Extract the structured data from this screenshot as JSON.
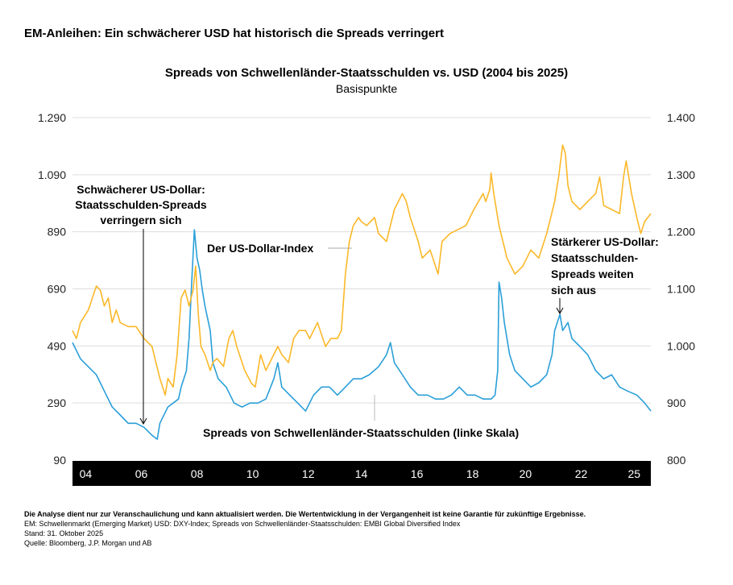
{
  "headline": "EM-Anleihen: Ein schwächerer USD hat historisch die Spreads verringert",
  "chart_data": {
    "type": "line",
    "title": "Spreads von Schwellenländer-Staatsschulden vs. USD (2004 bis 2025)",
    "subtitle": "Basispunkte",
    "xlim": [
      2004,
      2025.83
    ],
    "x_ticks": [
      {
        "label": "04",
        "x": 2004.5
      },
      {
        "label": "06",
        "x": 2006.6
      },
      {
        "label": "08",
        "x": 2008.7
      },
      {
        "label": "10",
        "x": 2010.8
      },
      {
        "label": "12",
        "x": 2012.9
      },
      {
        "label": "14",
        "x": 2014.9
      },
      {
        "label": "16",
        "x": 2017.0
      },
      {
        "label": "18",
        "x": 2019.1
      },
      {
        "label": "20",
        "x": 2021.1
      },
      {
        "label": "22",
        "x": 2023.2
      },
      {
        "label": "25",
        "x": 2025.2
      }
    ],
    "y_left": {
      "lim": [
        90,
        1290
      ],
      "ticks": [
        "1.290",
        "1.090",
        "890",
        "690",
        "490",
        "290",
        "90"
      ],
      "tick_values": [
        1290,
        1090,
        890,
        690,
        490,
        290,
        90
      ]
    },
    "y_right": {
      "lim": [
        800,
        1400
      ],
      "ticks": [
        "1.400",
        "1.300",
        "1.200",
        "1.100",
        "1.000",
        "900",
        "800"
      ],
      "tick_values": [
        1400,
        1300,
        1200,
        1100,
        1000,
        900,
        800
      ]
    },
    "grid": true,
    "series": [
      {
        "name": "Spreads von Schwellenländer-Staatsschulden (linke Skala)",
        "axis": "left",
        "color": "#2a9fd8",
        "points": [
          [
            2004.0,
            502
          ],
          [
            2004.3,
            445
          ],
          [
            2004.6,
            417
          ],
          [
            2004.9,
            389
          ],
          [
            2005.2,
            332
          ],
          [
            2005.5,
            276
          ],
          [
            2005.8,
            248
          ],
          [
            2006.1,
            219
          ],
          [
            2006.4,
            219
          ],
          [
            2006.7,
            205
          ],
          [
            2007.0,
            177
          ],
          [
            2007.2,
            163
          ],
          [
            2007.3,
            219
          ],
          [
            2007.6,
            276
          ],
          [
            2008.0,
            304
          ],
          [
            2008.1,
            346
          ],
          [
            2008.3,
            403
          ],
          [
            2008.4,
            516
          ],
          [
            2008.5,
            714
          ],
          [
            2008.6,
            897
          ],
          [
            2008.7,
            798
          ],
          [
            2008.8,
            756
          ],
          [
            2008.9,
            685
          ],
          [
            2009.0,
            629
          ],
          [
            2009.2,
            544
          ],
          [
            2009.3,
            431
          ],
          [
            2009.5,
            375
          ],
          [
            2009.8,
            346
          ],
          [
            2010.1,
            290
          ],
          [
            2010.4,
            276
          ],
          [
            2010.7,
            290
          ],
          [
            2011.0,
            290
          ],
          [
            2011.3,
            304
          ],
          [
            2011.6,
            375
          ],
          [
            2011.75,
            431
          ],
          [
            2011.9,
            346
          ],
          [
            2012.2,
            318
          ],
          [
            2012.5,
            290
          ],
          [
            2012.8,
            262
          ],
          [
            2013.1,
            318
          ],
          [
            2013.4,
            346
          ],
          [
            2013.7,
            346
          ],
          [
            2014.0,
            318
          ],
          [
            2014.3,
            346
          ],
          [
            2014.6,
            375
          ],
          [
            2014.9,
            375
          ],
          [
            2015.2,
            389
          ],
          [
            2015.55,
            417
          ],
          [
            2015.85,
            459
          ],
          [
            2016.0,
            502
          ],
          [
            2016.15,
            431
          ],
          [
            2016.45,
            389
          ],
          [
            2016.75,
            346
          ],
          [
            2017.05,
            318
          ],
          [
            2017.4,
            318
          ],
          [
            2017.7,
            304
          ],
          [
            2018.0,
            304
          ],
          [
            2018.3,
            318
          ],
          [
            2018.6,
            346
          ],
          [
            2018.9,
            318
          ],
          [
            2019.2,
            318
          ],
          [
            2019.5,
            304
          ],
          [
            2019.8,
            304
          ],
          [
            2019.95,
            318
          ],
          [
            2020.05,
            403
          ],
          [
            2020.1,
            714
          ],
          [
            2020.2,
            657
          ],
          [
            2020.3,
            572
          ],
          [
            2020.5,
            459
          ],
          [
            2020.7,
            403
          ],
          [
            2021.0,
            375
          ],
          [
            2021.3,
            346
          ],
          [
            2021.6,
            361
          ],
          [
            2021.9,
            389
          ],
          [
            2022.1,
            459
          ],
          [
            2022.2,
            544
          ],
          [
            2022.4,
            601
          ],
          [
            2022.5,
            544
          ],
          [
            2022.7,
            572
          ],
          [
            2022.85,
            516
          ],
          [
            2023.15,
            488
          ],
          [
            2023.45,
            459
          ],
          [
            2023.75,
            403
          ],
          [
            2024.05,
            375
          ],
          [
            2024.35,
            389
          ],
          [
            2024.65,
            346
          ],
          [
            2024.95,
            332
          ],
          [
            2025.3,
            318
          ],
          [
            2025.6,
            290
          ],
          [
            2025.83,
            262
          ]
        ]
      },
      {
        "name": "Der US-Dollar-Index",
        "axis": "right",
        "color": "#fbb829",
        "points": [
          [
            2004.0,
            1027
          ],
          [
            2004.15,
            1013
          ],
          [
            2004.3,
            1041
          ],
          [
            2004.6,
            1063
          ],
          [
            2004.9,
            1105
          ],
          [
            2005.05,
            1098
          ],
          [
            2005.2,
            1070
          ],
          [
            2005.35,
            1084
          ],
          [
            2005.5,
            1041
          ],
          [
            2005.65,
            1063
          ],
          [
            2005.8,
            1041
          ],
          [
            2006.1,
            1034
          ],
          [
            2006.4,
            1034
          ],
          [
            2006.7,
            1013
          ],
          [
            2007.0,
            999
          ],
          [
            2007.3,
            943
          ],
          [
            2007.5,
            914
          ],
          [
            2007.6,
            943
          ],
          [
            2007.8,
            928
          ],
          [
            2007.95,
            985
          ],
          [
            2008.1,
            1084
          ],
          [
            2008.25,
            1098
          ],
          [
            2008.4,
            1070
          ],
          [
            2008.55,
            1098
          ],
          [
            2008.65,
            1140
          ],
          [
            2008.75,
            1055
          ],
          [
            2008.85,
            999
          ],
          [
            2009.0,
            985
          ],
          [
            2009.2,
            957
          ],
          [
            2009.3,
            971
          ],
          [
            2009.45,
            978
          ],
          [
            2009.7,
            964
          ],
          [
            2009.9,
            1013
          ],
          [
            2010.05,
            1027
          ],
          [
            2010.2,
            999
          ],
          [
            2010.5,
            957
          ],
          [
            2010.75,
            935
          ],
          [
            2010.9,
            928
          ],
          [
            2011.1,
            985
          ],
          [
            2011.3,
            957
          ],
          [
            2011.45,
            971
          ],
          [
            2011.75,
            999
          ],
          [
            2011.9,
            985
          ],
          [
            2012.15,
            971
          ],
          [
            2012.35,
            1013
          ],
          [
            2012.55,
            1027
          ],
          [
            2012.8,
            1027
          ],
          [
            2012.95,
            1013
          ],
          [
            2013.25,
            1041
          ],
          [
            2013.55,
            999
          ],
          [
            2013.75,
            1013
          ],
          [
            2014.0,
            1013
          ],
          [
            2014.15,
            1027
          ],
          [
            2014.3,
            1126
          ],
          [
            2014.45,
            1183
          ],
          [
            2014.6,
            1211
          ],
          [
            2014.8,
            1225
          ],
          [
            2014.9,
            1218
          ],
          [
            2015.1,
            1211
          ],
          [
            2015.4,
            1225
          ],
          [
            2015.55,
            1197
          ],
          [
            2015.85,
            1183
          ],
          [
            2016.15,
            1239
          ],
          [
            2016.45,
            1267
          ],
          [
            2016.6,
            1253
          ],
          [
            2016.75,
            1225
          ],
          [
            2017.05,
            1183
          ],
          [
            2017.2,
            1154
          ],
          [
            2017.5,
            1168
          ],
          [
            2017.8,
            1126
          ],
          [
            2017.95,
            1183
          ],
          [
            2018.25,
            1197
          ],
          [
            2018.55,
            1204
          ],
          [
            2018.85,
            1211
          ],
          [
            2019.15,
            1239
          ],
          [
            2019.5,
            1267
          ],
          [
            2019.6,
            1253
          ],
          [
            2019.75,
            1274
          ],
          [
            2019.8,
            1303
          ],
          [
            2019.9,
            1267
          ],
          [
            2020.1,
            1211
          ],
          [
            2020.4,
            1154
          ],
          [
            2020.7,
            1126
          ],
          [
            2021.0,
            1140
          ],
          [
            2021.3,
            1168
          ],
          [
            2021.6,
            1154
          ],
          [
            2021.9,
            1197
          ],
          [
            2022.05,
            1225
          ],
          [
            2022.2,
            1253
          ],
          [
            2022.35,
            1296
          ],
          [
            2022.5,
            1352
          ],
          [
            2022.6,
            1338
          ],
          [
            2022.7,
            1281
          ],
          [
            2022.85,
            1253
          ],
          [
            2023.15,
            1239
          ],
          [
            2023.45,
            1253
          ],
          [
            2023.75,
            1267
          ],
          [
            2023.9,
            1296
          ],
          [
            2024.05,
            1246
          ],
          [
            2024.35,
            1239
          ],
          [
            2024.65,
            1232
          ],
          [
            2024.8,
            1296
          ],
          [
            2024.9,
            1324
          ],
          [
            2025.1,
            1267
          ],
          [
            2025.3,
            1225
          ],
          [
            2025.45,
            1197
          ],
          [
            2025.6,
            1218
          ],
          [
            2025.83,
            1232
          ]
        ]
      }
    ],
    "annotations": {
      "weak_usd": [
        "Schwächerer US-Dollar:",
        "Staatsschulden-Spreads",
        "verringern sich"
      ],
      "strong_usd": [
        "Stärkerer US-Dollar:",
        "Staatsschulden-",
        "Spreads weiten",
        "sich aus"
      ],
      "usd_label": "Der US-Dollar-Index",
      "spreads_label": "Spreads von Schwellenländer-Staatsschulden (linke Skala)"
    }
  },
  "footer": {
    "disclaimer": "Die Analyse dient nur zur Veranschaulichung und kann aktualisiert werden. Die Wertentwicklung in der Vergangenheit ist keine Garantie für zukünftige Ergebnisse.",
    "definitions": "EM: Schwellenmarkt (Emerging Market) USD: DXY-Index; Spreads von Schwellenländer-Staatsschulden: EMBI Global Diversified Index",
    "date": "Stand: 31. Oktober 2025",
    "source": "Quelle: Bloomberg, J.P. Morgan und AB"
  }
}
